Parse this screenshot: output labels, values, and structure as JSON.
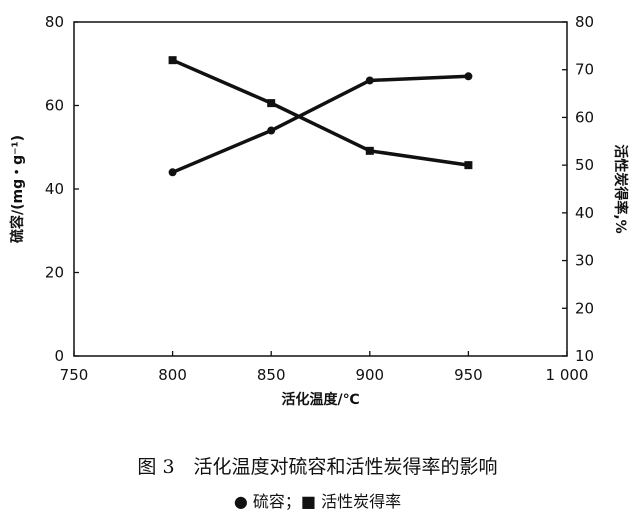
{
  "chart_data": {
    "type": "line",
    "xlabel": "活化温度/℃",
    "ylabel": "硫容/(mg・g⁻¹)",
    "y2label": "活性炭得率,%",
    "xlim": [
      750,
      1000
    ],
    "ylim": [
      0,
      80
    ],
    "y2lim": [
      10,
      80
    ],
    "xticks": [
      750,
      800,
      850,
      900,
      950,
      1000
    ],
    "xtick_labels": [
      "750",
      "800",
      "850",
      "900",
      "950",
      "1 000"
    ],
    "yticks": [
      0,
      20,
      40,
      60,
      80
    ],
    "y2ticks": [
      10,
      20,
      30,
      40,
      50,
      60,
      70,
      80
    ],
    "grid": false,
    "x": [
      800,
      850,
      900,
      950
    ],
    "series": [
      {
        "name": "硫容",
        "marker": "circle",
        "axis": "left",
        "values": [
          44,
          54,
          66,
          67
        ]
      },
      {
        "name": "活性炭得率",
        "marker": "square",
        "axis": "right",
        "values": [
          72,
          63,
          53,
          50
        ]
      }
    ],
    "caption": "图 3　活化温度对硫容和活性炭得率的影响",
    "legend_text": "●  硫容；■  活性炭得率",
    "color": "#111111"
  }
}
